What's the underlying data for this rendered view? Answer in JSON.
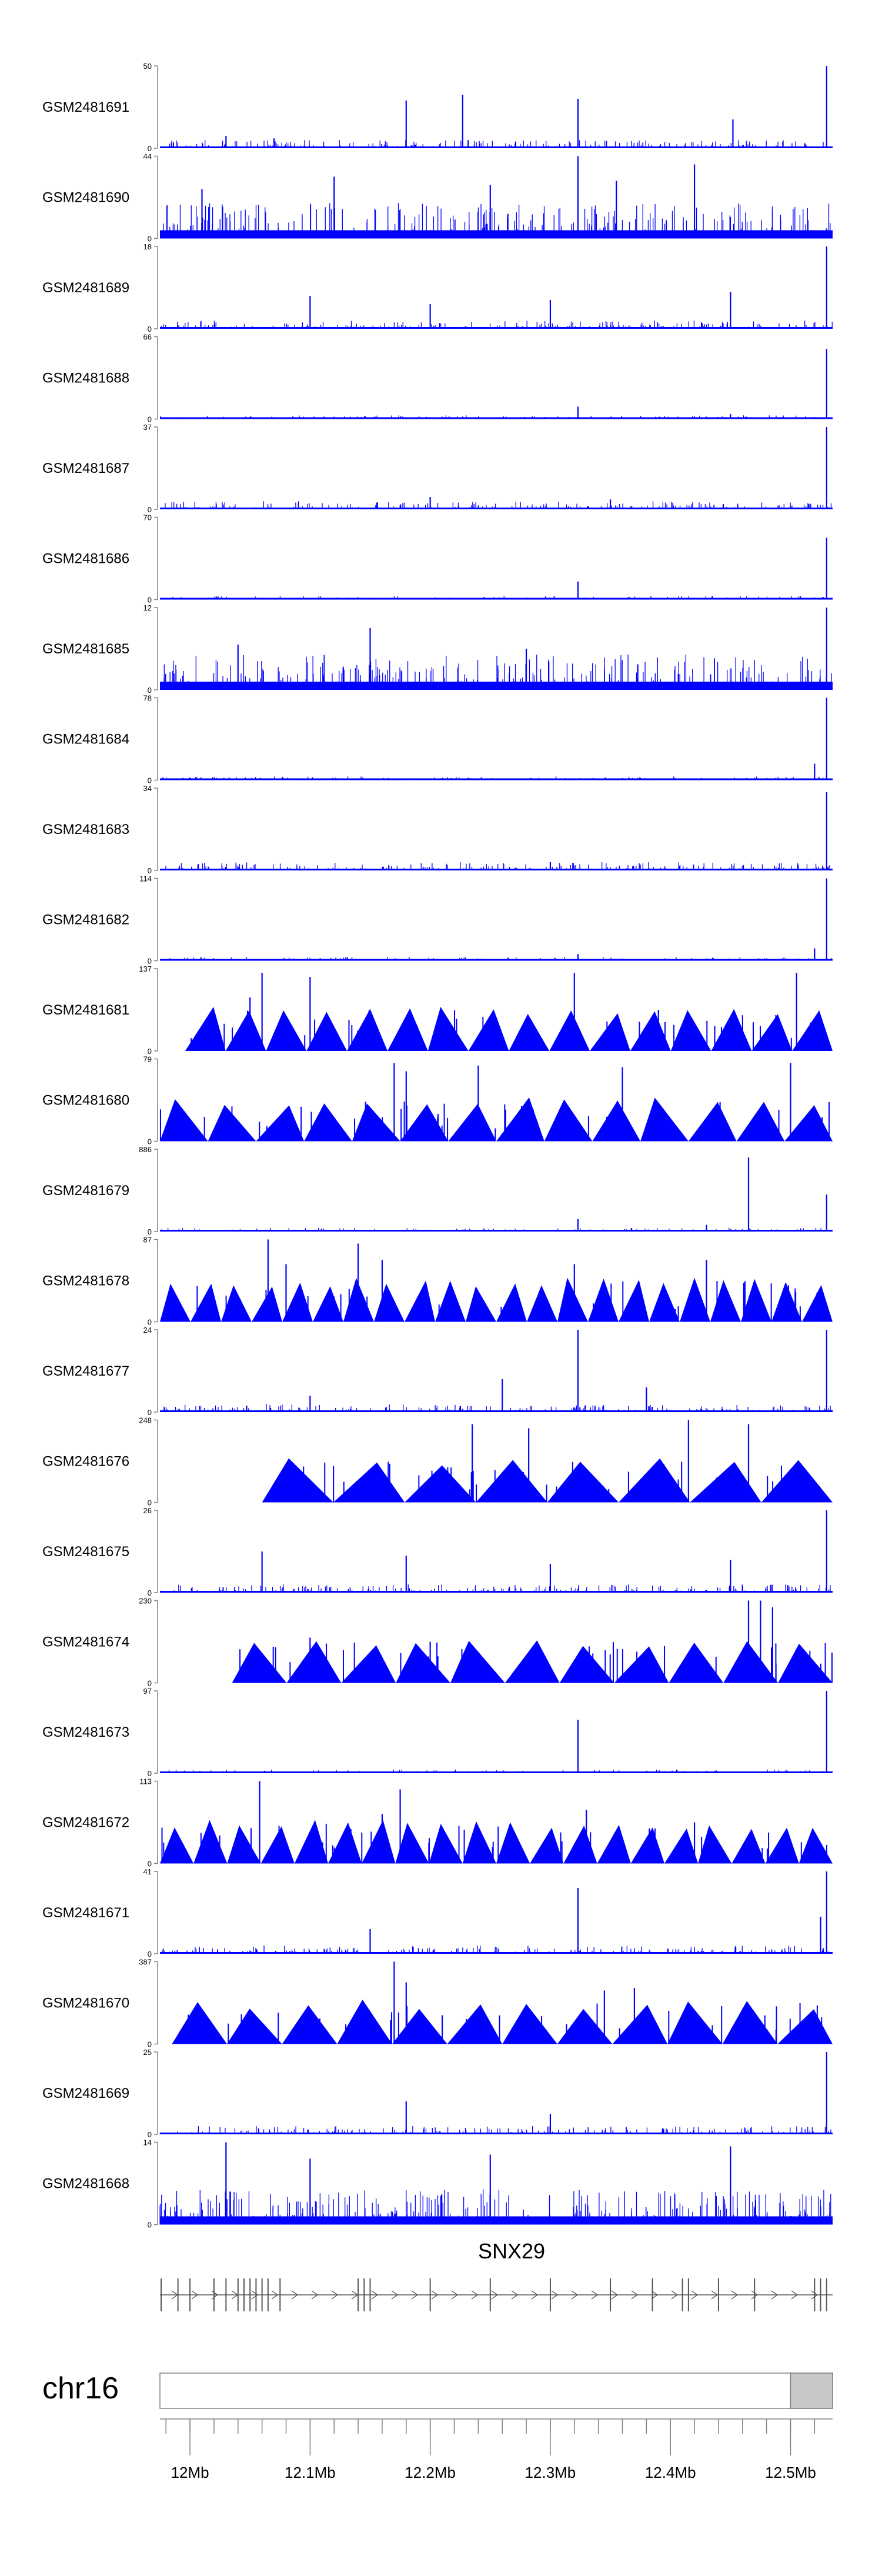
{
  "chart_data": {
    "type": "area",
    "colors": {
      "signal": "#0000ff",
      "axis": "#808080",
      "gene": "#555555",
      "chrom_fill": "#c8c8c8"
    },
    "tracks": [
      {
        "name": "GSM2481691",
        "ymax": "50",
        "ymin": "0",
        "style": "spiky",
        "peaks": [
          [
            12.18,
            0.58
          ],
          [
            12.227,
            0.65
          ],
          [
            12.323,
            0.6
          ],
          [
            12.452,
            0.35
          ],
          [
            12.53,
            1.0
          ],
          [
            12.03,
            0.15
          ],
          [
            12.07,
            0.12
          ]
        ]
      },
      {
        "name": "GSM2481690",
        "ymax": "44",
        "ymin": "0",
        "style": "dense",
        "peaks": [
          [
            12.12,
            0.75
          ],
          [
            12.323,
            1.0
          ],
          [
            12.42,
            0.9
          ],
          [
            12.355,
            0.7
          ],
          [
            12.01,
            0.6
          ],
          [
            12.25,
            0.65
          ]
        ]
      },
      {
        "name": "GSM2481689",
        "ymax": "18",
        "ymin": "0",
        "style": "spiky",
        "peaks": [
          [
            12.53,
            1.0
          ],
          [
            12.1,
            0.4
          ],
          [
            12.3,
            0.35
          ],
          [
            12.45,
            0.45
          ],
          [
            12.2,
            0.3
          ]
        ]
      },
      {
        "name": "GSM2481688",
        "ymax": "66",
        "ymin": "0",
        "style": "low",
        "peaks": [
          [
            12.53,
            0.85
          ],
          [
            12.323,
            0.15
          ],
          [
            12.45,
            0.06
          ]
        ]
      },
      {
        "name": "GSM2481687",
        "ymax": "37",
        "ymin": "0",
        "style": "spiky",
        "peaks": [
          [
            12.53,
            1.0
          ],
          [
            12.2,
            0.15
          ],
          [
            12.35,
            0.12
          ]
        ]
      },
      {
        "name": "GSM2481686",
        "ymax": "70",
        "ymin": "0",
        "style": "low",
        "peaks": [
          [
            12.53,
            0.75
          ],
          [
            12.323,
            0.22
          ]
        ]
      },
      {
        "name": "GSM2481685",
        "ymax": "12",
        "ymin": "0",
        "style": "dense",
        "peaks": [
          [
            12.15,
            0.75
          ],
          [
            12.53,
            1.0
          ],
          [
            12.04,
            0.55
          ],
          [
            12.28,
            0.5
          ]
        ]
      },
      {
        "name": "GSM2481684",
        "ymax": "78",
        "ymin": "0",
        "style": "low",
        "peaks": [
          [
            12.53,
            1.0
          ],
          [
            12.52,
            0.2
          ]
        ]
      },
      {
        "name": "GSM2481683",
        "ymax": "34",
        "ymin": "0",
        "style": "spiky",
        "peaks": [
          [
            12.53,
            0.95
          ],
          [
            12.3,
            0.1
          ]
        ]
      },
      {
        "name": "GSM2481682",
        "ymax": "114",
        "ymin": "0",
        "style": "low",
        "peaks": [
          [
            12.53,
            1.0
          ],
          [
            12.52,
            0.15
          ],
          [
            12.323,
            0.08
          ]
        ]
      },
      {
        "name": "GSM2481681",
        "ymax": "137",
        "ymin": "0",
        "style": "triangles",
        "start": 11.996,
        "tri_count": 16,
        "peaks": [
          [
            12.06,
            0.95
          ],
          [
            12.1,
            0.9
          ],
          [
            12.32,
            0.95
          ],
          [
            12.505,
            0.95
          ],
          [
            12.05,
            0.65
          ],
          [
            12.39,
            0.5
          ]
        ]
      },
      {
        "name": "GSM2481680",
        "ymax": "79",
        "ymin": "0",
        "style": "triangles",
        "start": 11.975,
        "tri_count": 14,
        "peaks": [
          [
            12.17,
            0.95
          ],
          [
            12.18,
            0.85
          ],
          [
            12.24,
            0.92
          ],
          [
            12.36,
            0.9
          ],
          [
            12.5,
            0.95
          ]
        ]
      },
      {
        "name": "GSM2481679",
        "ymax": "886",
        "ymin": "0",
        "style": "low",
        "peaks": [
          [
            12.465,
            0.9
          ],
          [
            12.53,
            0.45
          ],
          [
            12.323,
            0.15
          ],
          [
            12.43,
            0.08
          ]
        ]
      },
      {
        "name": "GSM2481678",
        "ymax": "87",
        "ymin": "0",
        "style": "triangles",
        "start": 11.975,
        "tri_count": 22,
        "peaks": [
          [
            12.065,
            1.0
          ],
          [
            12.14,
            0.95
          ],
          [
            12.08,
            0.7
          ],
          [
            12.16,
            0.75
          ],
          [
            12.32,
            0.7
          ],
          [
            12.43,
            0.75
          ]
        ]
      },
      {
        "name": "GSM2481677",
        "ymax": "24",
        "ymin": "0",
        "style": "spiky",
        "peaks": [
          [
            12.323,
            1.0
          ],
          [
            12.53,
            1.0
          ],
          [
            12.26,
            0.4
          ],
          [
            12.38,
            0.3
          ],
          [
            12.1,
            0.2
          ]
        ]
      },
      {
        "name": "GSM2481676",
        "ymax": "248",
        "ymin": "0",
        "style": "triangles",
        "start": 12.06,
        "tri_count": 8,
        "peaks": [
          [
            12.235,
            0.95
          ],
          [
            12.282,
            0.9
          ],
          [
            12.415,
            1.0
          ],
          [
            12.465,
            0.95
          ]
        ]
      },
      {
        "name": "GSM2481675",
        "ymax": "26",
        "ymin": "0",
        "style": "spiky",
        "peaks": [
          [
            12.53,
            1.0
          ],
          [
            12.06,
            0.5
          ],
          [
            12.18,
            0.45
          ],
          [
            12.45,
            0.4
          ],
          [
            12.3,
            0.35
          ]
        ]
      },
      {
        "name": "GSM2481674",
        "ymax": "230",
        "ymin": "0",
        "style": "triangles",
        "start": 12.035,
        "tri_count": 11,
        "peaks": [
          [
            12.465,
            1.0
          ],
          [
            12.475,
            1.0
          ],
          [
            12.485,
            0.92
          ],
          [
            12.1,
            0.55
          ],
          [
            12.2,
            0.5
          ]
        ]
      },
      {
        "name": "GSM2481673",
        "ymax": "97",
        "ymin": "0",
        "style": "low",
        "peaks": [
          [
            12.323,
            0.65
          ],
          [
            12.53,
            1.0
          ]
        ]
      },
      {
        "name": "GSM2481672",
        "ymax": "113",
        "ymin": "0",
        "style": "triangles",
        "start": 11.975,
        "tri_count": 20,
        "peaks": [
          [
            12.058,
            1.0
          ],
          [
            12.175,
            0.9
          ],
          [
            12.16,
            0.6
          ],
          [
            12.33,
            0.65
          ],
          [
            12.42,
            0.5
          ]
        ]
      },
      {
        "name": "GSM2481671",
        "ymax": "41",
        "ymin": "0",
        "style": "spiky",
        "peaks": [
          [
            12.323,
            0.8
          ],
          [
            12.53,
            1.0
          ],
          [
            12.525,
            0.45
          ],
          [
            12.15,
            0.3
          ]
        ]
      },
      {
        "name": "GSM2481670",
        "ymax": "387",
        "ymin": "0",
        "style": "triangles",
        "start": 11.985,
        "tri_count": 12,
        "peaks": [
          [
            12.17,
            1.0
          ],
          [
            12.18,
            0.75
          ],
          [
            12.345,
            0.65
          ],
          [
            12.37,
            0.68
          ],
          [
            12.21,
            0.35
          ]
        ]
      },
      {
        "name": "GSM2481669",
        "ymax": "25",
        "ymin": "0",
        "style": "spiky",
        "peaks": [
          [
            12.53,
            1.0
          ],
          [
            12.18,
            0.4
          ],
          [
            12.3,
            0.25
          ]
        ]
      },
      {
        "name": "GSM2481668",
        "ymax": "14",
        "ymin": "0",
        "style": "dense",
        "peaks": [
          [
            12.03,
            1.0
          ],
          [
            12.45,
            0.95
          ],
          [
            12.25,
            0.85
          ],
          [
            12.1,
            0.8
          ]
        ]
      }
    ],
    "gene": {
      "name": "SNX29",
      "x_start": 11.975,
      "x_end": 12.535,
      "exons": [
        11.976,
        11.99,
        12.0,
        12.02,
        12.03,
        12.04,
        12.045,
        12.05,
        12.055,
        12.06,
        12.065,
        12.075,
        12.14,
        12.145,
        12.15,
        12.2,
        12.25,
        12.3,
        12.35,
        12.385,
        12.41,
        12.415,
        12.44,
        12.47,
        12.52,
        12.525,
        12.53
      ]
    },
    "ideogram": {
      "chromosome": "chr16",
      "xlim": [
        11.975,
        12.535
      ],
      "highlight": [
        12.5,
        12.535
      ],
      "tick_labels": [
        "12Mb",
        "12.1Mb",
        "12.2Mb",
        "12.3Mb",
        "12.4Mb",
        "12.5Mb"
      ],
      "tick_values": [
        12.0,
        12.1,
        12.2,
        12.3,
        12.4,
        12.5
      ],
      "minor_step": 0.02
    }
  }
}
